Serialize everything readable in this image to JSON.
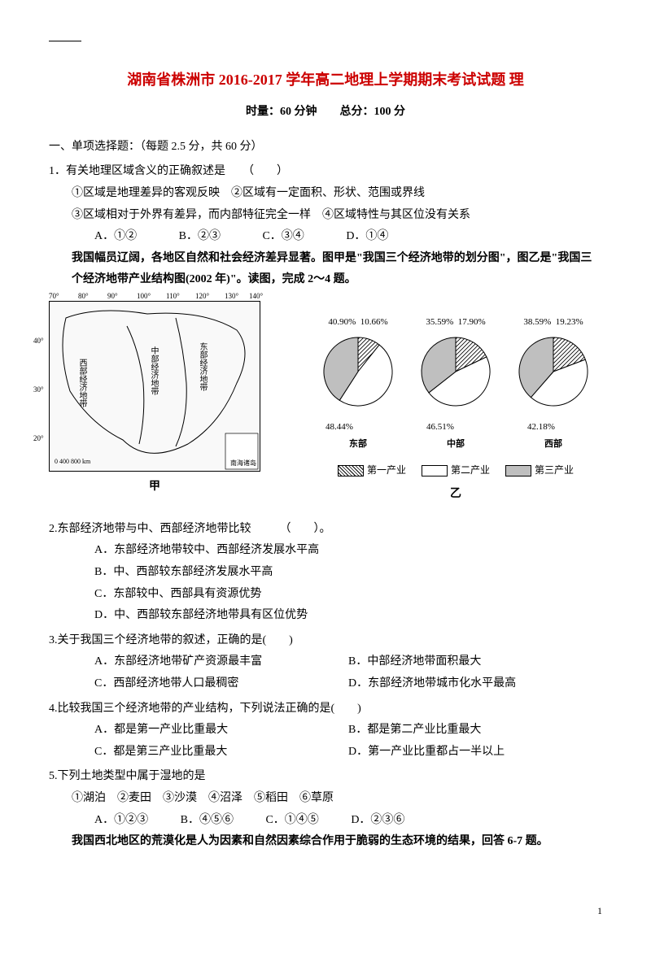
{
  "header_line": true,
  "title": "湖南省株洲市 2016-2017 学年高二地理上学期期末考试试题 理",
  "subtitle": "时量：60 分钟　　总分：100 分",
  "section1_header": "一、单项选择题：（每题 2.5 分，共 60 分）",
  "q1": {
    "stem": "1．有关地理区域含义的正确叙述是　　（　　）",
    "line1": "①区域是地理差异的客观反映　②区域有一定面积、形状、范围或界线",
    "line2": "③区域相对于外界有差异，而内部特征完全一样　④区域特性与其区位没有关系",
    "optA": "A．①②",
    "optB": "B．②③",
    "optC": "C．③④",
    "optD": "D．①④"
  },
  "intro_block": "我国幅员辽阔，各地区自然和社会经济差异显著。图甲是\"我国三个经济地带的划分图\"，图乙是\"我国三个经济地带产业结构图(2002 年)\"。读图，完成 2～4 题。",
  "map": {
    "lons": [
      "70°",
      "80°",
      "90°",
      "100°",
      "110°",
      "120°",
      "130°",
      "140°"
    ],
    "lats": [
      "40°",
      "30°",
      "20°"
    ],
    "labels": {
      "west": "西部经济地带",
      "mid": "中部经济地带",
      "east": "东部经济地带",
      "scale": "0  400 800 km",
      "nanhai": "南海诸岛"
    },
    "caption": "甲"
  },
  "pies": {
    "east": {
      "name": "东部",
      "p1": 10.66,
      "p2": 48.44,
      "p3": 40.9,
      "lab_p3": "40.90%",
      "lab_p1": "10.66%",
      "lab_p2": "48.44%"
    },
    "mid": {
      "name": "中部",
      "p1": 17.9,
      "p2": 46.51,
      "p3": 35.59,
      "lab_p3": "35.59%",
      "lab_p1": "17.90%",
      "lab_p2": "46.51%"
    },
    "west": {
      "name": "西部",
      "p1": 19.23,
      "p2": 42.18,
      "p3": 38.59,
      "lab_p3": "38.59%",
      "lab_p1": "19.23%",
      "lab_p2": "42.18%"
    },
    "legend": {
      "p1": "第一产业",
      "p2": "第二产业",
      "p3": "第三产业"
    },
    "caption": "乙",
    "colors": {
      "p1_fill": "#ffffff",
      "p2_fill": "#ffffff",
      "p3_fill": "#bfbfbf",
      "p1_hatch": "#000000",
      "stroke": "#000000"
    }
  },
  "q2": {
    "stem": "2.东部经济地带与中、西部经济地带比较　　　（　　）。",
    "A": "A．东部经济地带较中、西部经济发展水平高",
    "B": "B．中、西部较东部经济发展水平高",
    "C": "C．东部较中、西部具有资源优势",
    "D": "D．中、西部较东部经济地带具有区位优势"
  },
  "q3": {
    "stem": "3.关于我国三个经济地带的叙述，正确的是(　　)",
    "A": "A．东部经济地带矿产资源最丰富",
    "B": "B．中部经济地带面积最大",
    "C": "C．西部经济地带人口最稠密",
    "D": "D．东部经济地带城市化水平最高"
  },
  "q4": {
    "stem": "4.比较我国三个经济地带的产业结构，下列说法正确的是(　　)",
    "A": "A．都是第一产业比重最大",
    "B": "B．都是第二产业比重最大",
    "C": "C．都是第三产业比重最大",
    "D": "D．第一产业比重都占一半以上"
  },
  "q5": {
    "stem": "5.下列土地类型中属于湿地的是",
    "items": "①湖泊　②麦田　③沙漠　④沼泽　⑤稻田　⑥草原",
    "A": "A．①②③",
    "B": "B．④⑤⑥",
    "C": "C．①④⑤",
    "D": "D．②③⑥"
  },
  "intro_block2": "我国西北地区的荒漠化是人为因素和自然因素综合作用于脆弱的生态环境的结果，回答 6-7 题。",
  "page_num": "1"
}
